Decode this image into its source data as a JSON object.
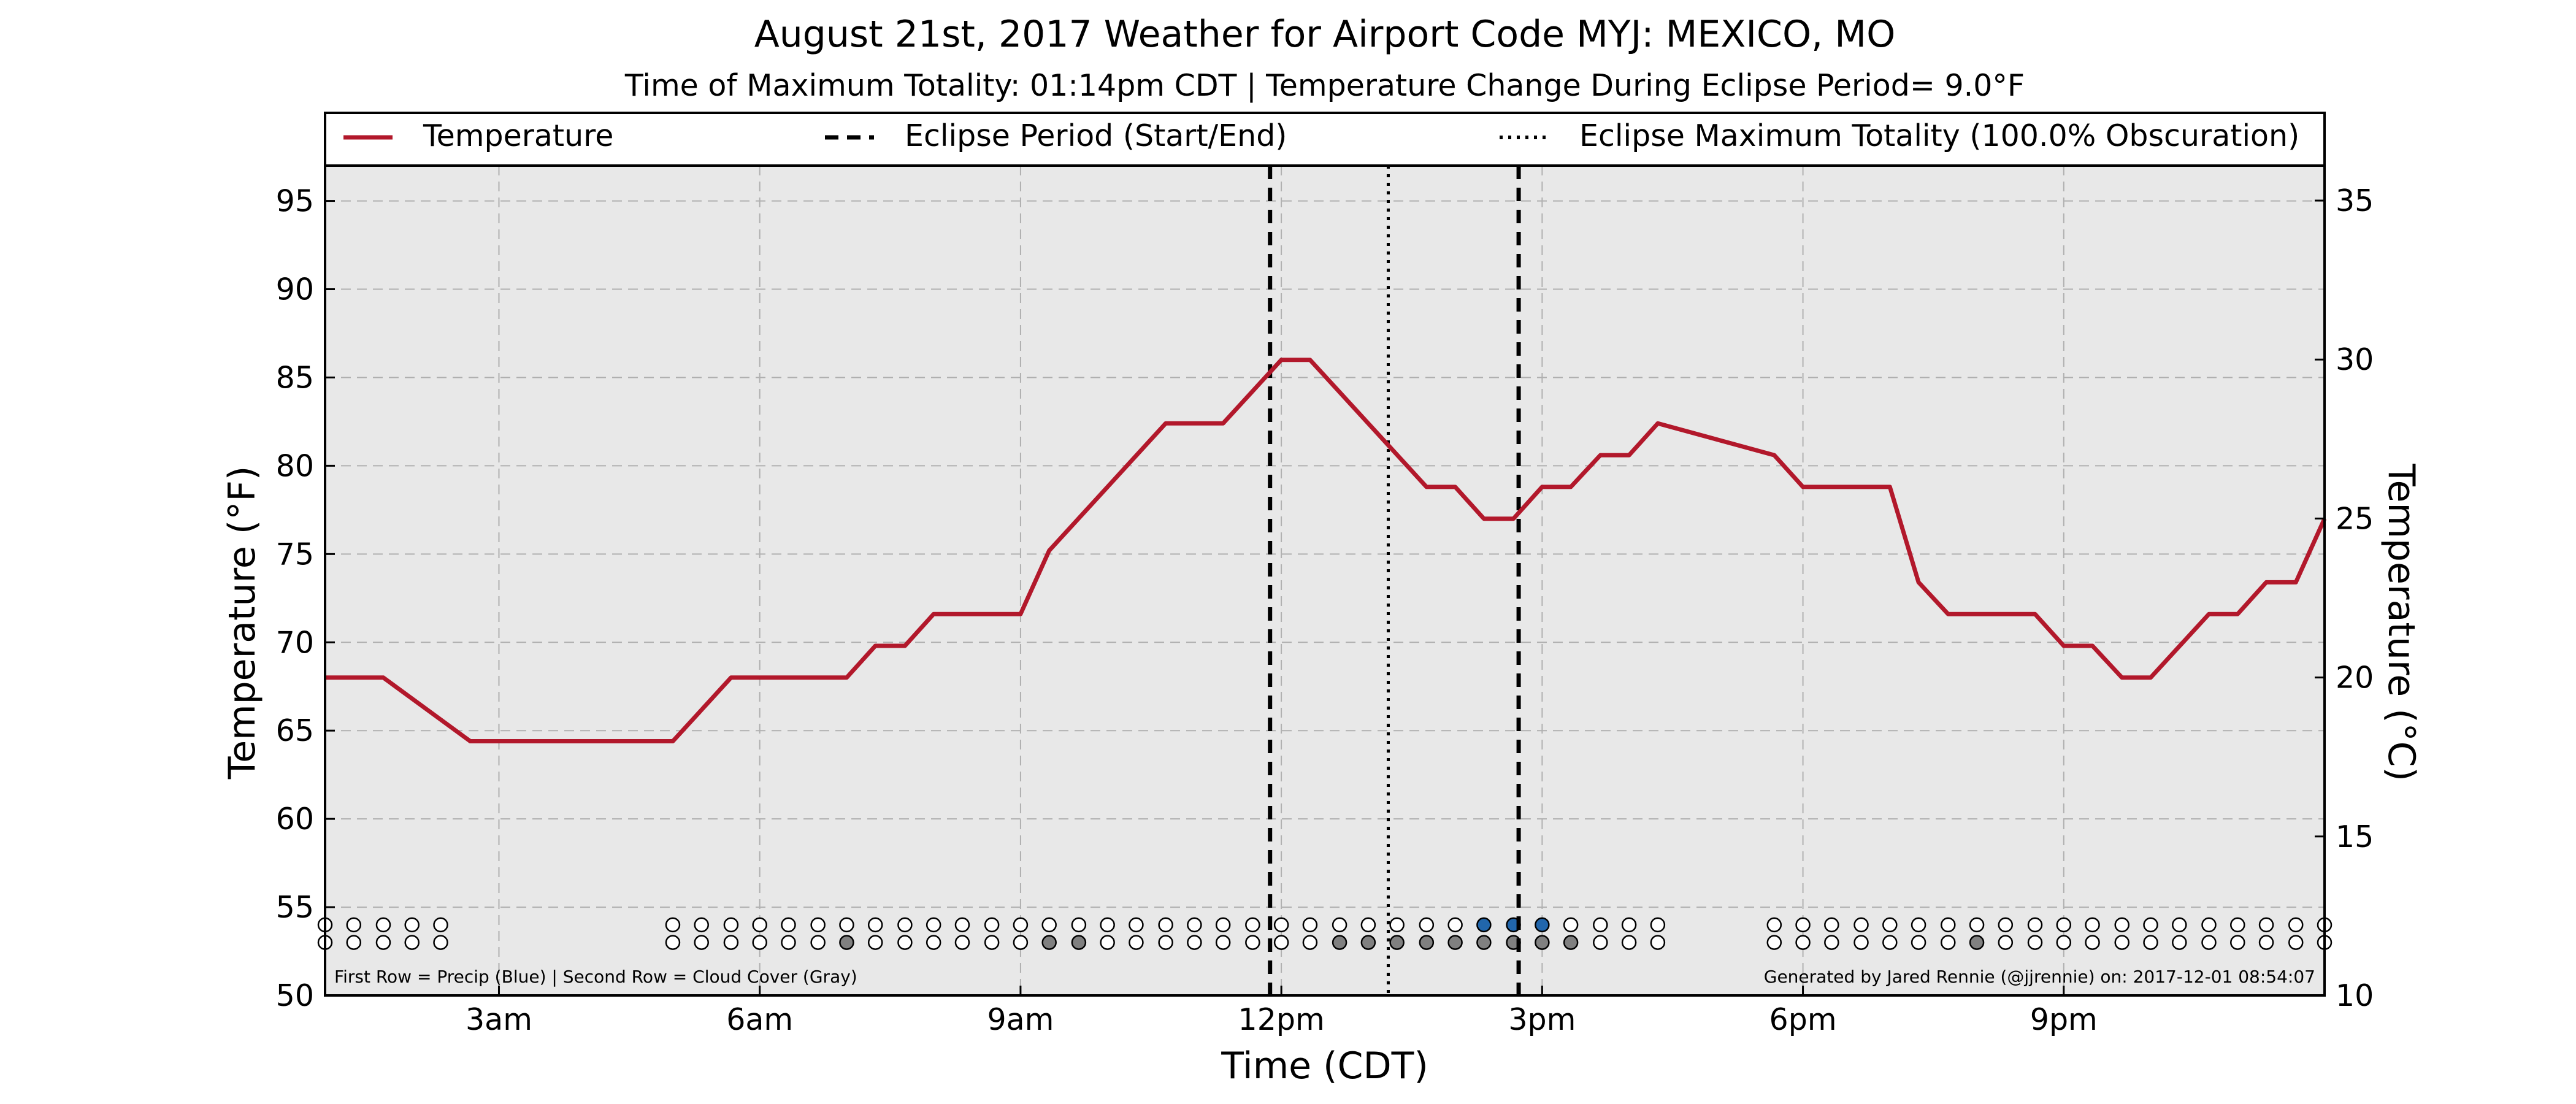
{
  "chart_data": {
    "type": "line",
    "title": "August 21st, 2017 Weather for Airport Code MYJ: MEXICO, MO",
    "subtitle": "Time of Maximum Totality: 01:14pm CDT | Temperature Change During Eclipse Period= 9.0°F",
    "xlabel": "Time (CDT)",
    "ylabel": "Temperature (°F)",
    "ylabel_right": "Temperature (°C)",
    "xlim": [
      1.0,
      24.0
    ],
    "ylim": [
      50,
      97
    ],
    "ylim_right": [
      10,
      36.1
    ],
    "x_ticks": [
      3,
      6,
      9,
      12,
      15,
      18,
      21
    ],
    "x_ticklabels": [
      "3am",
      "6am",
      "9am",
      "12pm",
      "3pm",
      "6pm",
      "9pm"
    ],
    "y_ticks": [
      50,
      55,
      60,
      65,
      70,
      75,
      80,
      85,
      90,
      95
    ],
    "y_ticks_right": [
      10,
      15,
      20,
      25,
      30,
      35
    ],
    "grid": true,
    "legend_position": "top",
    "legend": [
      {
        "label": "Temperature",
        "style": "solid"
      },
      {
        "label": "Eclipse Period (Start/End)",
        "style": "dashed"
      },
      {
        "label": "Eclipse Maximum Totality (100.0% Obscuration)",
        "style": "dotted"
      }
    ],
    "series": [
      {
        "name": "Temperature",
        "color": "#b2182b",
        "points": [
          [
            1.0,
            68.0
          ],
          [
            1.67,
            68.0
          ],
          [
            2.67,
            64.4
          ],
          [
            4.0,
            64.4
          ],
          [
            5.0,
            64.4
          ],
          [
            5.67,
            68.0
          ],
          [
            6.67,
            68.0
          ],
          [
            7.0,
            68.0
          ],
          [
            7.33,
            69.8
          ],
          [
            7.67,
            69.8
          ],
          [
            8.0,
            71.6
          ],
          [
            9.0,
            71.6
          ],
          [
            9.33,
            75.2
          ],
          [
            10.67,
            82.4
          ],
          [
            11.33,
            82.4
          ],
          [
            12.0,
            86.0
          ],
          [
            12.33,
            86.0
          ],
          [
            13.67,
            78.8
          ],
          [
            14.0,
            78.8
          ],
          [
            14.33,
            77.0
          ],
          [
            14.67,
            77.0
          ],
          [
            15.0,
            78.8
          ],
          [
            15.33,
            78.8
          ],
          [
            15.67,
            80.6
          ],
          [
            16.0,
            80.6
          ],
          [
            16.33,
            82.4
          ],
          [
            17.67,
            80.6
          ],
          [
            18.0,
            78.8
          ],
          [
            19.0,
            78.8
          ],
          [
            19.33,
            73.4
          ],
          [
            19.67,
            71.6
          ],
          [
            20.67,
            71.6
          ],
          [
            21.0,
            69.8
          ],
          [
            21.33,
            69.8
          ],
          [
            21.67,
            68.0
          ],
          [
            22.0,
            68.0
          ],
          [
            22.67,
            71.6
          ],
          [
            23.0,
            71.6
          ],
          [
            23.33,
            73.4
          ],
          [
            23.67,
            73.4
          ],
          [
            24.0,
            77.0
          ]
        ]
      }
    ],
    "vlines": [
      {
        "name": "eclipse-start",
        "x": 11.87,
        "style": "dashed"
      },
      {
        "name": "eclipse-max",
        "x": 13.23,
        "style": "dotted"
      },
      {
        "name": "eclipse-end",
        "x": 14.73,
        "style": "dashed"
      }
    ],
    "marker_rows": {
      "precip_y": 54.0,
      "cloud_y": 53.0,
      "times": [
        1.0,
        1.33,
        1.67,
        2.0,
        2.33,
        5.0,
        5.33,
        5.67,
        6.0,
        6.33,
        6.67,
        7.0,
        7.33,
        7.67,
        8.0,
        8.33,
        8.67,
        9.0,
        9.33,
        9.67,
        10.0,
        10.33,
        10.67,
        11.0,
        11.33,
        11.67,
        12.0,
        12.33,
        12.67,
        13.0,
        13.33,
        13.67,
        14.0,
        14.33,
        14.67,
        15.0,
        15.33,
        15.67,
        16.0,
        16.33,
        17.67,
        18.0,
        18.33,
        18.67,
        19.0,
        19.33,
        19.67,
        20.0,
        20.33,
        20.67,
        21.0,
        21.33,
        21.67,
        22.0,
        22.33,
        22.67,
        23.0,
        23.33,
        23.67,
        24.0
      ],
      "precip": [
        0,
        0,
        0,
        0,
        0,
        0,
        0,
        0,
        0,
        0,
        0,
        0,
        0,
        0,
        0,
        0,
        0,
        0,
        0,
        0,
        0,
        0,
        0,
        0,
        0,
        0,
        0,
        0,
        0,
        0,
        0,
        0,
        0,
        1,
        1,
        1,
        0,
        0,
        0,
        0,
        0,
        0,
        0,
        0,
        0,
        0,
        0,
        0,
        0,
        0,
        0,
        0,
        0,
        0,
        0,
        0,
        0,
        0,
        0,
        0
      ],
      "cloud": [
        0,
        0,
        0,
        0,
        0,
        0,
        0,
        0,
        0,
        0,
        0,
        1,
        0,
        0,
        0,
        0,
        0,
        0,
        1,
        1,
        0,
        0,
        0,
        0,
        0,
        0,
        0,
        0,
        1,
        1,
        1,
        1,
        1,
        1,
        1,
        1,
        1,
        0,
        0,
        0,
        0,
        0,
        0,
        0,
        0,
        0,
        0,
        1,
        0,
        0,
        0,
        0,
        0,
        0,
        0,
        0,
        0,
        0,
        0,
        0
      ],
      "precip_color": "#2166ac",
      "cloud_color": "#808080"
    },
    "footnote_left": "First Row = Precip (Blue) | Second Row = Cloud Cover (Gray)",
    "footnote_right": "Generated by Jared Rennie (@jjrennie) on: 2017-12-01 08:54:07",
    "colors": {
      "plot_background": "#e8e8e8",
      "grid": "#b0b0b0"
    }
  }
}
